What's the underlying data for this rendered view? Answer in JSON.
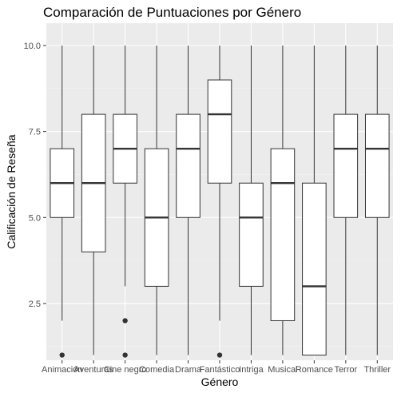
{
  "chart_data": {
    "type": "boxplot",
    "title": "Comparación de Puntuaciones por Género",
    "xlabel": "Género",
    "ylabel": "Calificación de Reseña",
    "ylim": [
      0.85,
      10.65
    ],
    "yticks": [
      2.5,
      5.0,
      7.5,
      10.0
    ],
    "ytick_labels": [
      "2.5",
      "5.0",
      "7.5",
      "10.0"
    ],
    "grid": true,
    "categories": [
      "Animación",
      "Aventuras",
      "Cine negro",
      "Comedia",
      "Drama",
      "Fantástico",
      "Intriga",
      "Musical",
      "Romance",
      "Terror",
      "Thriller"
    ],
    "boxes": [
      {
        "min": 2,
        "q1": 5,
        "median": 6,
        "q3": 7,
        "max": 10,
        "outliers": [
          1
        ]
      },
      {
        "min": 1,
        "q1": 4,
        "median": 6,
        "q3": 8,
        "max": 10,
        "outliers": []
      },
      {
        "min": 3,
        "q1": 6,
        "median": 7,
        "q3": 8,
        "max": 10,
        "outliers": [
          1,
          2
        ]
      },
      {
        "min": 1,
        "q1": 3,
        "median": 5,
        "q3": 7,
        "max": 10,
        "outliers": []
      },
      {
        "min": 1,
        "q1": 5,
        "median": 7,
        "q3": 8,
        "max": 10,
        "outliers": []
      },
      {
        "min": 2,
        "q1": 6,
        "median": 8,
        "q3": 9,
        "max": 10,
        "outliers": [
          1
        ]
      },
      {
        "min": 1,
        "q1": 3,
        "median": 5,
        "q3": 6,
        "max": 10,
        "outliers": []
      },
      {
        "min": 1,
        "q1": 2,
        "median": 6,
        "q3": 7,
        "max": 10,
        "outliers": []
      },
      {
        "min": 1,
        "q1": 1,
        "median": 3,
        "q3": 6,
        "max": 10,
        "outliers": []
      },
      {
        "min": 1,
        "q1": 5,
        "median": 7,
        "q3": 8,
        "max": 10,
        "outliers": []
      },
      {
        "min": 1,
        "q1": 5,
        "median": 7,
        "q3": 8,
        "max": 10,
        "outliers": []
      }
    ],
    "colors": {
      "panel_background": "#ebebeb",
      "grid_major": "#ffffff",
      "grid_minor": "#f5f5f5",
      "box_fill": "#ffffff",
      "box_stroke": "#333333",
      "tick_text": "#4d4d4d"
    }
  }
}
